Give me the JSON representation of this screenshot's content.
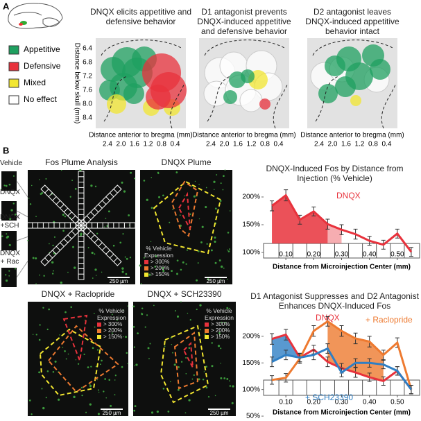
{
  "panel_a": {
    "label": "A",
    "legend": [
      "Appetitive",
      "Defensive",
      "Mixed",
      "No effect"
    ],
    "maps": [
      {
        "title": "DNQX elicits appetitive and defensive behavior"
      },
      {
        "title": "D1 antagonist prevents DNQX-induced appetitive and defensive behavior"
      },
      {
        "title": "D2 antagonist leaves DNQX-induced appetitive behavior intact"
      }
    ],
    "y_label": "Distance below skull (mm)",
    "yticks": [
      "6.4",
      "6.8",
      "7.2",
      "7.6",
      "8.0",
      "8.4"
    ],
    "x_label": "Distance anterior to bregma (mm)",
    "xticks": [
      "2.4",
      "2.0",
      "1.6",
      "1.2",
      "0.8",
      "0.4"
    ]
  },
  "panel_b": {
    "label": "B",
    "samples": [
      "Vehicle",
      "DNQX",
      "DNQX +SCH",
      "DNQX + Rac"
    ],
    "images": [
      {
        "title": "Fos Plume Analysis",
        "scale": "250 µm"
      },
      {
        "title": "DNQX Plume",
        "scale": "250 µm"
      },
      {
        "title": "DNQX + Raclopride",
        "scale": "250 µm"
      },
      {
        "title": "DNQX + SCH23390",
        "scale": "250 µm"
      }
    ],
    "legend_title": "% Vehicle Expression",
    "legend": [
      "> 300%",
      "> 200%",
      "> 150%"
    ]
  },
  "chart_data": [
    {
      "type": "line",
      "title": "DNQX-Induced Fos by Distance from Injection (% Vehicle)",
      "x_label": "Distance from Microinjection Center (mm)",
      "x": [
        0.05,
        0.1,
        0.15,
        0.2,
        0.25,
        0.3,
        0.35,
        0.4,
        0.45,
        0.5,
        0.55
      ],
      "xlim": [
        0.02,
        0.58
      ],
      "xticks": [
        {
          "value": 0.1,
          "label": "0.10"
        },
        {
          "value": 0.2,
          "label": "0.20"
        },
        {
          "value": 0.3,
          "label": "0.30"
        },
        {
          "value": 0.4,
          "label": "0.40"
        },
        {
          "value": 0.5,
          "label": "0.50"
        }
      ],
      "ylim": [
        90,
        215
      ],
      "yticks": [
        {
          "value": 100,
          "label": "100%"
        },
        {
          "value": 150,
          "label": "150%"
        },
        {
          "value": 200,
          "label": "200%"
        }
      ],
      "series": [
        {
          "name": "DNQX",
          "color": "#e8323c",
          "values": [
            184,
            203,
            159,
            174,
            151,
            141,
            133,
            121,
            114,
            134,
            101
          ],
          "errors": [
            9,
            10,
            8,
            8,
            9,
            9,
            9,
            8,
            8,
            8,
            8
          ]
        }
      ]
    },
    {
      "type": "line",
      "title": "D1 Antagonist Suppresses and D2 Antagonist Enhances DNQX-Induced Fos",
      "x_label": "Distance from Microinjection Center (mm)",
      "x": [
        0.05,
        0.1,
        0.15,
        0.2,
        0.25,
        0.3,
        0.35,
        0.4,
        0.45,
        0.5,
        0.55
      ],
      "xlim": [
        0.02,
        0.58
      ],
      "xticks": [
        {
          "value": 0.1,
          "label": "0.10"
        },
        {
          "value": 0.2,
          "label": "0.20"
        },
        {
          "value": 0.3,
          "label": "0.30"
        },
        {
          "value": 0.4,
          "label": "0.40"
        },
        {
          "value": 0.5,
          "label": "0.50"
        }
      ],
      "ylim": [
        50,
        235
      ],
      "yticks": [
        {
          "value": 50,
          "label": "50%"
        },
        {
          "value": 100,
          "label": "100%"
        },
        {
          "value": 150,
          "label": "150%"
        },
        {
          "value": 200,
          "label": "200%"
        }
      ],
      "series": [
        {
          "name": "DNQX",
          "color": "#e8323c",
          "values": [
            195,
            203,
            160,
            175,
            152,
            140,
            132,
            123,
            116,
            135,
            100
          ],
          "errors": [
            10,
            10,
            8,
            8,
            9,
            9,
            9,
            8,
            8,
            8,
            8
          ]
        },
        {
          "name": "+ Raclopride",
          "color": "#ee7a30",
          "values": [
            118,
            122,
            158,
            210,
            228,
            210,
            196,
            190,
            165,
            188,
            100
          ],
          "errors": [
            8,
            8,
            9,
            10,
            9,
            10,
            10,
            10,
            9,
            9,
            8
          ]
        },
        {
          "name": "+ SCH23390",
          "color": "#2f7fc4",
          "values": [
            152,
            165,
            160,
            165,
            177,
            132,
            150,
            150,
            147,
            135,
            100
          ],
          "errors": [
            9,
            9,
            8,
            9,
            9,
            8,
            8,
            8,
            8,
            8,
            8
          ]
        }
      ]
    }
  ]
}
